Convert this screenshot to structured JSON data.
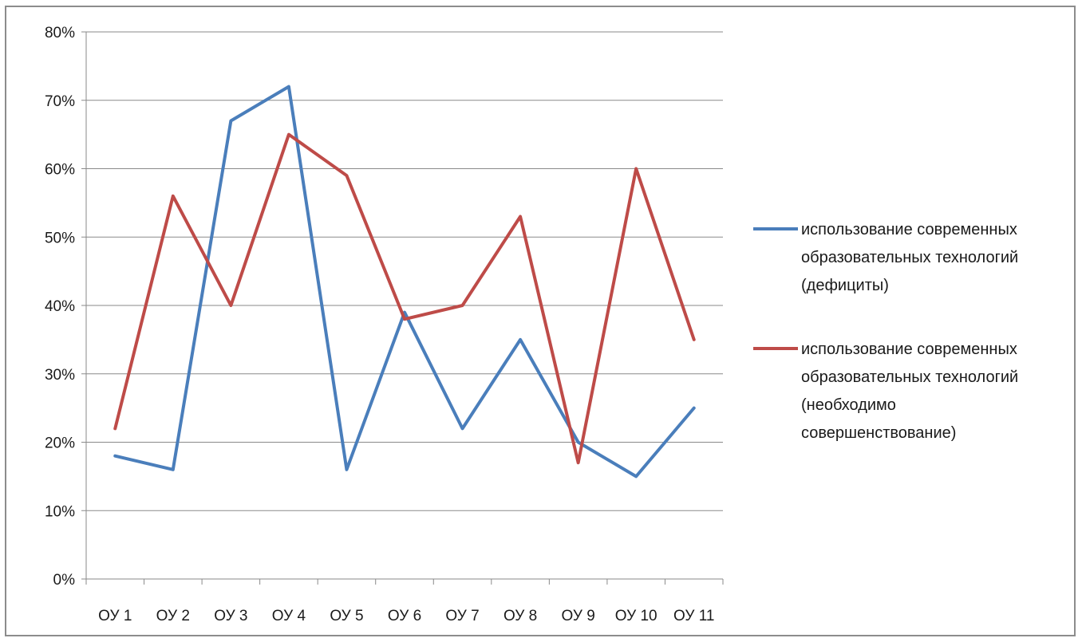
{
  "chart_data": {
    "type": "line",
    "categories": [
      "ОУ 1",
      "ОУ 2",
      "ОУ 3",
      "ОУ 4",
      "ОУ 5",
      "ОУ 6",
      "ОУ 7",
      "ОУ 8",
      "ОУ 9",
      "ОУ 10",
      "ОУ 11"
    ],
    "y_ticks": [
      "0%",
      "10%",
      "20%",
      "30%",
      "40%",
      "50%",
      "60%",
      "70%",
      "80%"
    ],
    "ylim": [
      0,
      80
    ],
    "grid": true,
    "legend_position": "right",
    "series": [
      {
        "name": "использование современных образовательных технологий (дефициты)",
        "legend_lines": [
          "использование современных",
          "образовательных технологий",
          "(дефициты)"
        ],
        "color": "#4a7ebb",
        "values": [
          18,
          16,
          67,
          72,
          16,
          39,
          22,
          35,
          20,
          15,
          25
        ]
      },
      {
        "name": "использование современных образовательных технологий (необходимо совершенствование)",
        "legend_lines": [
          "использование современных",
          "образовательных технологий",
          "(необходимо",
          "совершенствование)"
        ],
        "color": "#be4b48",
        "values": [
          22,
          56,
          40,
          65,
          59,
          38,
          40,
          53,
          17,
          60,
          35
        ]
      }
    ]
  }
}
